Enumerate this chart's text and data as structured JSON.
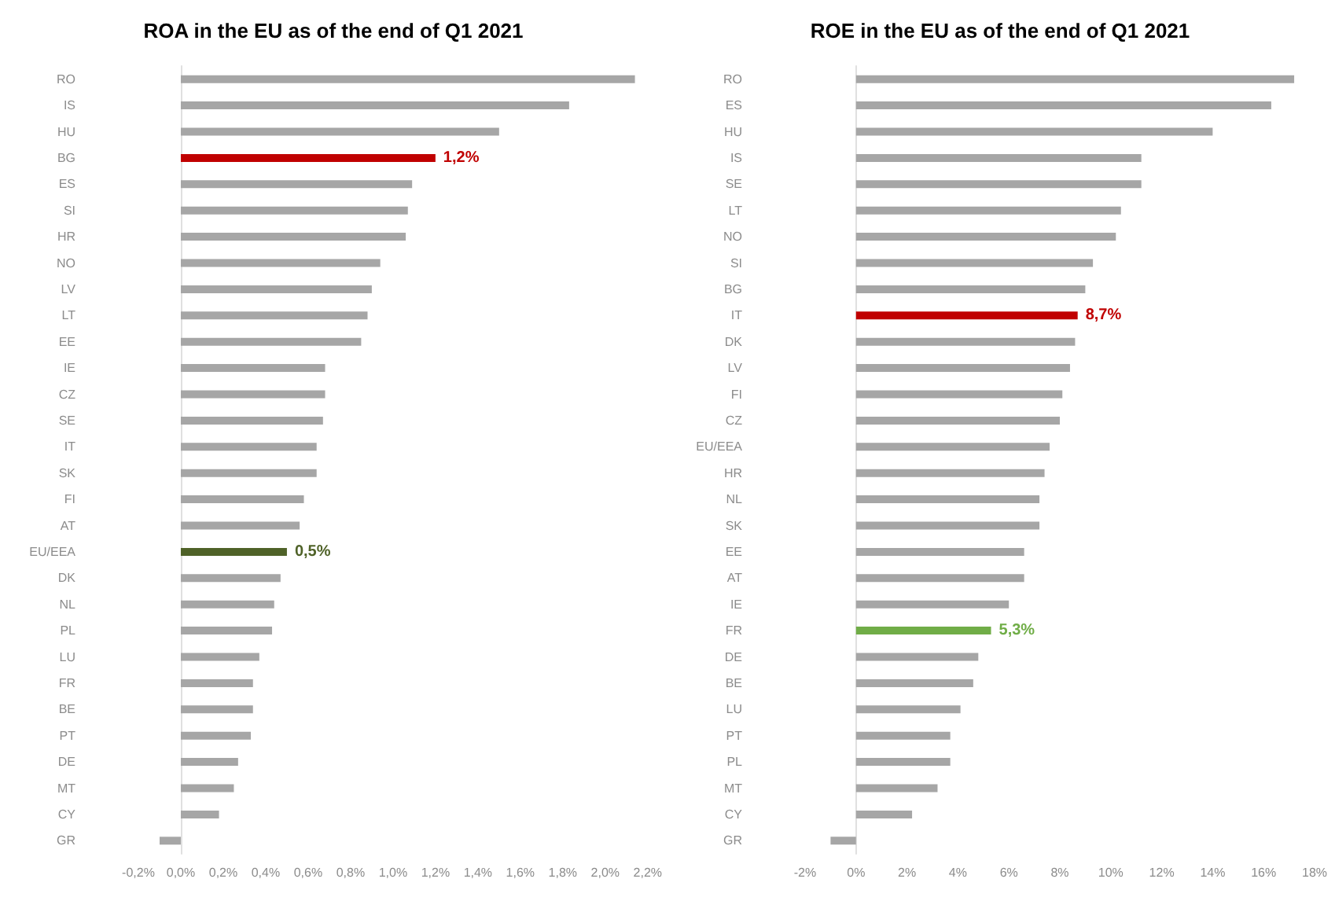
{
  "chart_data": [
    {
      "type": "bar",
      "orientation": "horizontal",
      "title": "ROA in the EU as of the end of Q1 2021",
      "categories": [
        "RO",
        "IS",
        "HU",
        "BG",
        "ES",
        "SI",
        "HR",
        "NO",
        "LV",
        "LT",
        "EE",
        "IE",
        "CZ",
        "SE",
        "IT",
        "SK",
        "FI",
        "AT",
        "EU/EEA",
        "DK",
        "NL",
        "PL",
        "LU",
        "FR",
        "BE",
        "PT",
        "DE",
        "MT",
        "CY",
        "GR"
      ],
      "values": [
        2.14,
        1.83,
        1.5,
        1.2,
        1.09,
        1.07,
        1.06,
        0.94,
        0.9,
        0.88,
        0.85,
        0.68,
        0.68,
        0.67,
        0.64,
        0.64,
        0.58,
        0.56,
        0.5,
        0.47,
        0.44,
        0.43,
        0.37,
        0.34,
        0.34,
        0.33,
        0.27,
        0.25,
        0.18,
        -0.1
      ],
      "colors": [
        "#a6a6a6",
        "#a6a6a6",
        "#a6a6a6",
        "#c00000",
        "#a6a6a6",
        "#a6a6a6",
        "#a6a6a6",
        "#a6a6a6",
        "#a6a6a6",
        "#a6a6a6",
        "#a6a6a6",
        "#a6a6a6",
        "#a6a6a6",
        "#a6a6a6",
        "#a6a6a6",
        "#a6a6a6",
        "#a6a6a6",
        "#a6a6a6",
        "#4f6228",
        "#a6a6a6",
        "#a6a6a6",
        "#a6a6a6",
        "#a6a6a6",
        "#a6a6a6",
        "#a6a6a6",
        "#a6a6a6",
        "#a6a6a6",
        "#a6a6a6",
        "#a6a6a6",
        "#a6a6a6"
      ],
      "value_labels": [
        null,
        null,
        null,
        "1,2%",
        null,
        null,
        null,
        null,
        null,
        null,
        null,
        null,
        null,
        null,
        null,
        null,
        null,
        null,
        "0,5%",
        null,
        null,
        null,
        null,
        null,
        null,
        null,
        null,
        null,
        null,
        null
      ],
      "xlim": [
        -0.2,
        2.2
      ],
      "xticks": [
        {
          "value": -0.2,
          "label": "-0,2%"
        },
        {
          "value": 0,
          "label": "0,0%"
        },
        {
          "value": 0.2,
          "label": "0,2%"
        },
        {
          "value": 0.4,
          "label": "0,4%"
        },
        {
          "value": 0.6,
          "label": "0,6%"
        },
        {
          "value": 0.8,
          "label": "0,8%"
        },
        {
          "value": 1.0,
          "label": "1,0%"
        },
        {
          "value": 1.2,
          "label": "1,2%"
        },
        {
          "value": 1.4,
          "label": "1,4%"
        },
        {
          "value": 1.6,
          "label": "1,6%"
        },
        {
          "value": 1.8,
          "label": "1,8%"
        },
        {
          "value": 2.0,
          "label": "2,0%"
        },
        {
          "value": 2.2,
          "label": "2,2%"
        }
      ]
    },
    {
      "type": "bar",
      "orientation": "horizontal",
      "title": "ROE in the EU as of the end of Q1 2021",
      "categories": [
        "RO",
        "ES",
        "HU",
        "IS",
        "SE",
        "LT",
        "NO",
        "SI",
        "BG",
        "IT",
        "DK",
        "LV",
        "FI",
        "CZ",
        "EU/EEA",
        "HR",
        "NL",
        "SK",
        "EE",
        "AT",
        "IE",
        "FR",
        "DE",
        "BE",
        "LU",
        "PT",
        "PL",
        "MT",
        "CY",
        "GR"
      ],
      "values": [
        17.2,
        16.3,
        14.0,
        11.2,
        11.2,
        10.4,
        10.2,
        9.3,
        9.0,
        8.7,
        8.6,
        8.4,
        8.1,
        8.0,
        7.6,
        7.4,
        7.2,
        7.2,
        6.6,
        6.6,
        6.0,
        5.3,
        4.8,
        4.6,
        4.1,
        3.7,
        3.7,
        3.2,
        2.2,
        -1.0
      ],
      "colors": [
        "#a6a6a6",
        "#a6a6a6",
        "#a6a6a6",
        "#a6a6a6",
        "#a6a6a6",
        "#a6a6a6",
        "#a6a6a6",
        "#a6a6a6",
        "#a6a6a6",
        "#c00000",
        "#a6a6a6",
        "#a6a6a6",
        "#a6a6a6",
        "#a6a6a6",
        "#a6a6a6",
        "#a6a6a6",
        "#a6a6a6",
        "#a6a6a6",
        "#a6a6a6",
        "#a6a6a6",
        "#a6a6a6",
        "#70ad47",
        "#a6a6a6",
        "#a6a6a6",
        "#a6a6a6",
        "#a6a6a6",
        "#a6a6a6",
        "#a6a6a6",
        "#a6a6a6",
        "#a6a6a6"
      ],
      "value_labels": [
        null,
        null,
        null,
        null,
        null,
        null,
        null,
        null,
        null,
        "8,7%",
        null,
        null,
        null,
        null,
        null,
        null,
        null,
        null,
        null,
        null,
        null,
        "5,3%",
        null,
        null,
        null,
        null,
        null,
        null,
        null,
        null
      ],
      "xlim": [
        -2,
        18
      ],
      "xticks": [
        {
          "value": -2,
          "label": "-2%"
        },
        {
          "value": 0,
          "label": "0%"
        },
        {
          "value": 2,
          "label": "2%"
        },
        {
          "value": 4,
          "label": "4%"
        },
        {
          "value": 6,
          "label": "6%"
        },
        {
          "value": 8,
          "label": "8%"
        },
        {
          "value": 10,
          "label": "10%"
        },
        {
          "value": 12,
          "label": "12%"
        },
        {
          "value": 14,
          "label": "14%"
        },
        {
          "value": 16,
          "label": "16%"
        },
        {
          "value": 18,
          "label": "18%"
        }
      ]
    }
  ]
}
